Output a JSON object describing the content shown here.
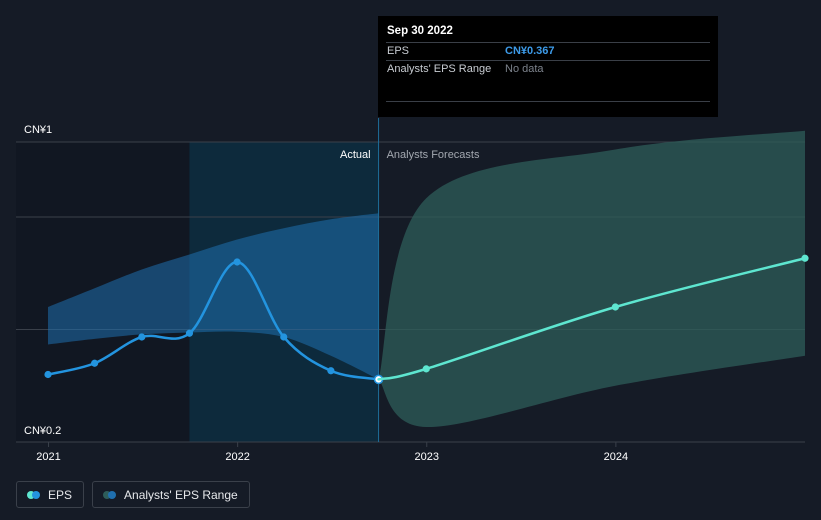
{
  "tooltip": {
    "date": "Sep 30 2022",
    "eps_label": "EPS",
    "eps_value": "CN¥0.367",
    "range_label": "Analysts' EPS Range",
    "range_value": "No data"
  },
  "legend": {
    "eps_label": "EPS",
    "range_label": "Analysts' EPS Range"
  },
  "colors": {
    "background": "#151b26",
    "eps_actual": "#2394df",
    "eps_forecast": "#5ee6d0",
    "range_actual": "#1f6fae",
    "range_forecast": "#2e5d5a",
    "highlight": "#0b3a52",
    "grid": "#3a404a"
  },
  "chart_data": {
    "type": "line",
    "y_axis_labels": [
      "CN¥1",
      "CN¥0.2"
    ],
    "ylim": [
      0.2,
      1.0
    ],
    "x_tick_labels": [
      "2021",
      "2022",
      "2023",
      "2024"
    ],
    "x_ticks": [
      "2021-01-01",
      "2022-01-01",
      "2023-01-01",
      "2024-01-01"
    ],
    "xlim": [
      "2020-12-31",
      "2024-12-31"
    ],
    "section_labels": {
      "actual": "Actual",
      "forecast": "Analysts Forecasts"
    },
    "divider_date": "2022-09-30",
    "highlight_range": [
      "2021-09-30",
      "2022-09-30"
    ],
    "grid": true,
    "series": [
      {
        "name": "EPS",
        "role": "actual",
        "points": [
          [
            "2020-12-31",
            0.38
          ],
          [
            "2021-03-31",
            0.41
          ],
          [
            "2021-06-30",
            0.48
          ],
          [
            "2021-09-30",
            0.49
          ],
          [
            "2021-12-31",
            0.68
          ],
          [
            "2022-03-31",
            0.48
          ],
          [
            "2022-06-30",
            0.39
          ],
          [
            "2022-09-30",
            0.367
          ]
        ]
      },
      {
        "name": "EPS",
        "role": "forecast",
        "points": [
          [
            "2022-09-30",
            0.367
          ],
          [
            "2022-12-31",
            0.395
          ],
          [
            "2023-12-31",
            0.56
          ],
          [
            "2024-12-31",
            0.69
          ]
        ]
      }
    ],
    "ranges": [
      {
        "name": "Analysts' EPS Range",
        "role": "actual",
        "upper": [
          [
            "2020-12-31",
            0.56
          ],
          [
            "2021-03-31",
            0.61
          ],
          [
            "2021-06-30",
            0.66
          ],
          [
            "2021-09-30",
            0.7
          ],
          [
            "2021-12-31",
            0.74
          ],
          [
            "2022-03-31",
            0.77
          ],
          [
            "2022-06-30",
            0.794
          ],
          [
            "2022-09-30",
            0.81
          ]
        ],
        "lower": [
          [
            "2020-12-31",
            0.46
          ],
          [
            "2021-03-31",
            0.475
          ],
          [
            "2021-06-30",
            0.487
          ],
          [
            "2021-09-30",
            0.492
          ],
          [
            "2021-12-31",
            0.494
          ],
          [
            "2022-03-31",
            0.48
          ],
          [
            "2022-06-30",
            0.43
          ],
          [
            "2022-09-30",
            0.367
          ]
        ]
      },
      {
        "name": "Analysts' EPS Range",
        "role": "forecast",
        "upper": [
          [
            "2022-09-30",
            0.367
          ],
          [
            "2022-12-31",
            0.85
          ],
          [
            "2023-12-31",
            0.98
          ],
          [
            "2024-12-31",
            1.03
          ]
        ],
        "lower": [
          [
            "2022-09-30",
            0.367
          ],
          [
            "2022-12-31",
            0.24
          ],
          [
            "2023-12-31",
            0.35
          ],
          [
            "2024-12-31",
            0.43
          ]
        ]
      }
    ]
  }
}
